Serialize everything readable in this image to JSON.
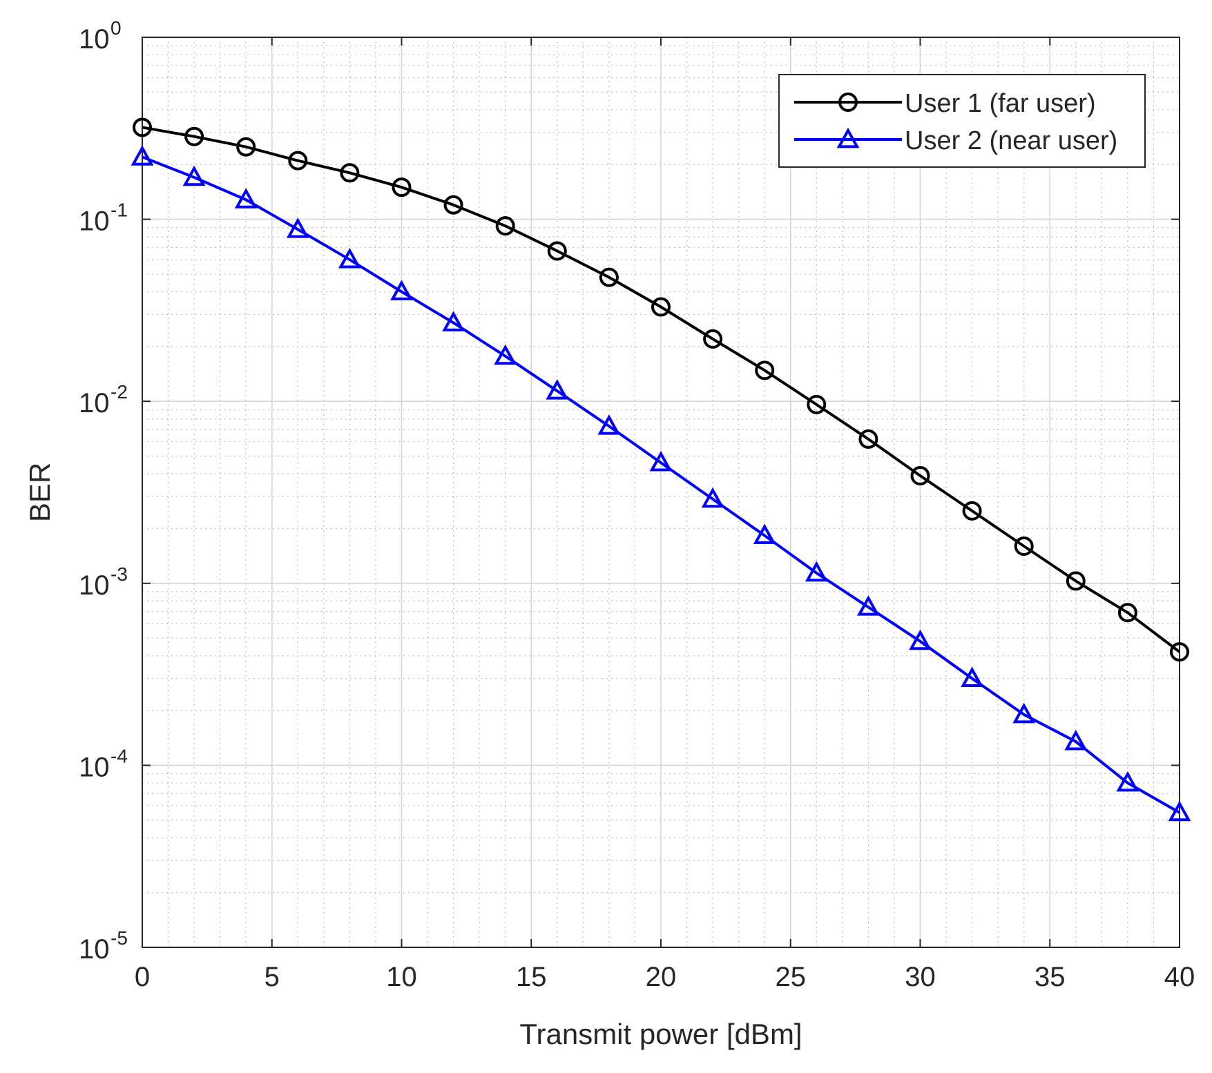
{
  "chart_data": {
    "type": "line",
    "title": "",
    "xlabel": "Transmit power [dBm]",
    "ylabel": "BER",
    "xscale": "linear",
    "yscale": "log",
    "xlim": [
      0,
      40
    ],
    "ylim": [
      1e-05,
      1
    ],
    "grid": true,
    "minor_grid": true,
    "legend_position": "top-right",
    "xticks": [
      0,
      5,
      10,
      15,
      20,
      25,
      30,
      35,
      40
    ],
    "xtick_labels": [
      "0",
      "5",
      "10",
      "15",
      "20",
      "25",
      "30",
      "35",
      "40"
    ],
    "yticks": [
      {
        "value": 1e-05,
        "base": "10",
        "exp": "-5"
      },
      {
        "value": 0.0001,
        "base": "10",
        "exp": "-4"
      },
      {
        "value": 0.001,
        "base": "10",
        "exp": "-3"
      },
      {
        "value": 0.01,
        "base": "10",
        "exp": "-2"
      },
      {
        "value": 0.1,
        "base": "10",
        "exp": "-1"
      },
      {
        "value": 1,
        "base": "10",
        "exp": "0"
      }
    ],
    "x": [
      0,
      2,
      4,
      6,
      8,
      10,
      12,
      14,
      16,
      18,
      20,
      22,
      24,
      26,
      28,
      30,
      32,
      34,
      36,
      38,
      40
    ],
    "series": [
      {
        "name": "User 1 (far user)",
        "color": "#000000",
        "marker": "circle",
        "values": [
          0.32,
          0.285,
          0.25,
          0.21,
          0.18,
          0.15,
          0.12,
          0.092,
          0.067,
          0.048,
          0.033,
          0.022,
          0.0148,
          0.0096,
          0.0062,
          0.0039,
          0.0025,
          0.0016,
          0.00103,
          0.00069,
          0.00042
        ]
      },
      {
        "name": "User 2 (near user)",
        "color": "#0000ff",
        "marker": "triangle",
        "values": [
          0.22,
          0.17,
          0.128,
          0.088,
          0.06,
          0.04,
          0.027,
          0.0177,
          0.0114,
          0.0073,
          0.0046,
          0.0029,
          0.00183,
          0.00114,
          0.00074,
          0.00048,
          0.0003,
          0.00019,
          0.000135,
          8e-05,
          5.5e-05
        ]
      }
    ]
  }
}
